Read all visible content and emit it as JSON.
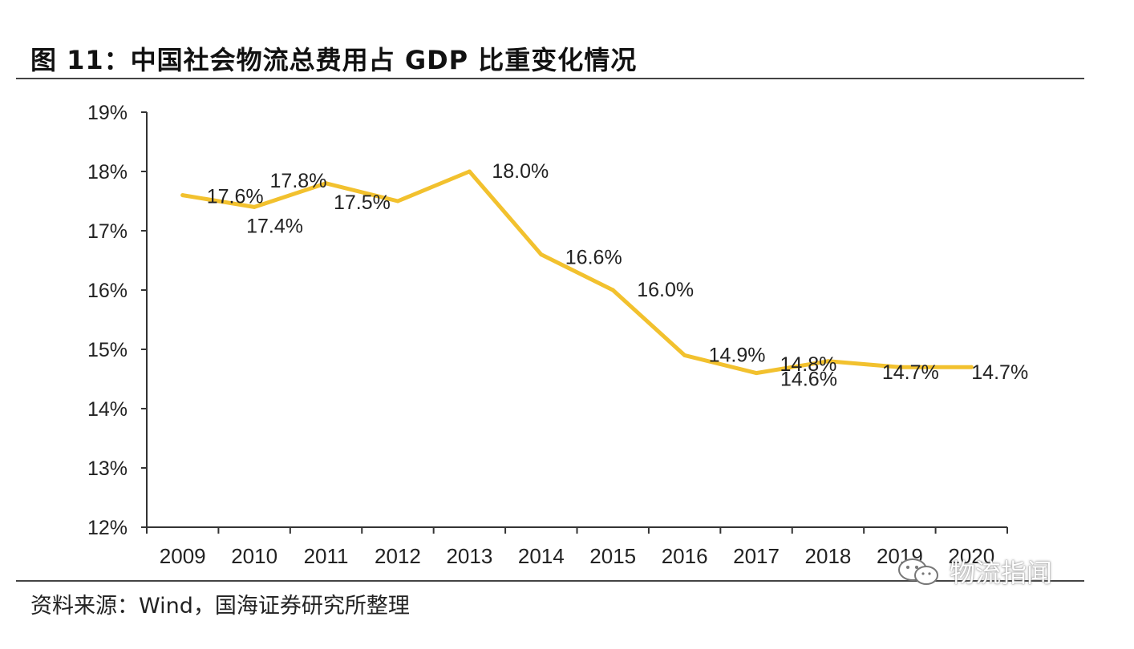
{
  "header": {
    "title": "图 11：中国社会物流总费用占 GDP 比重变化情况"
  },
  "footer": {
    "source": "资料来源：Wind，国海证券研究所整理"
  },
  "watermark": {
    "text": "物流指闻",
    "icon": "wechat-icon"
  },
  "colors": {
    "line": "#F2C12E",
    "axis": "#333333",
    "text": "#222222"
  },
  "chart_data": {
    "type": "line",
    "categories": [
      "2009",
      "2010",
      "2011",
      "2012",
      "2013",
      "2014",
      "2015",
      "2016",
      "2017",
      "2018",
      "2019",
      "2020"
    ],
    "series": [
      {
        "values": [
          17.6,
          17.4,
          17.8,
          17.5,
          18.0,
          16.6,
          16.0,
          14.9,
          14.6,
          14.8,
          14.7,
          14.7
        ]
      }
    ],
    "data_labels": [
      "17.6%",
      "17.4%",
      "17.8%",
      "17.5%",
      "18.0%",
      "16.6%",
      "16.0%",
      "14.9%",
      "14.6%",
      "14.8%",
      "14.7%",
      "14.7%"
    ],
    "y_ticks": [
      "12%",
      "13%",
      "14%",
      "15%",
      "16%",
      "17%",
      "18%",
      "19%"
    ],
    "ylim": [
      12,
      19
    ],
    "grid": false,
    "legend": "none"
  }
}
